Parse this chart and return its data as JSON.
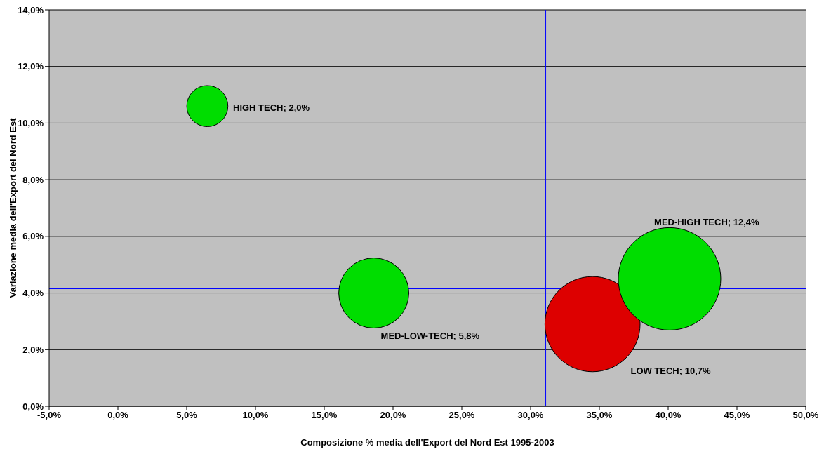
{
  "chart_data": {
    "type": "bubble",
    "xlabel": "Composizione % media dell'Export del Nord  Est 1995-2003",
    "ylabel": "Variazione media dell'Export del Nord Est",
    "x": [
      6.5,
      18.6,
      34.5,
      40.1
    ],
    "values": [
      10.6,
      4.0,
      2.9,
      4.5
    ],
    "sizes": [
      0.161,
      0.468,
      0.863,
      1
    ],
    "colors": [
      "#00dd00",
      "#00dd00",
      "#dd0000",
      "#00dd00"
    ],
    "annotations": [
      "HIGH TECH; 2,0%",
      "MED-LOW-TECH; 5,8%",
      "LOW TECH; 10,7%",
      "MED-HIGH TECH; 12,4%"
    ],
    "xlim": [
      -5,
      50
    ],
    "xticks": [
      {
        "value": -5,
        "label": "-5,0%"
      },
      {
        "value": 0,
        "label": "0,0%"
      },
      {
        "value": 5,
        "label": "5,0%"
      },
      {
        "value": 10,
        "label": "10,0%"
      },
      {
        "value": 15,
        "label": "15,0%"
      },
      {
        "value": 20,
        "label": "20,0%"
      },
      {
        "value": 25,
        "label": "25,0%"
      },
      {
        "value": 30,
        "label": "30,0%"
      },
      {
        "value": 35,
        "label": "35,0%"
      },
      {
        "value": 40,
        "label": "40,0%"
      },
      {
        "value": 45,
        "label": "45,0%"
      },
      {
        "value": 50,
        "label": "50,0%"
      }
    ],
    "ylim": [
      0,
      14
    ],
    "yticks": [
      {
        "value": 0,
        "label": "0,0%"
      },
      {
        "value": 2,
        "label": "2,0%"
      },
      {
        "value": 4,
        "label": "4,0%"
      },
      {
        "value": 6,
        "label": "6,0%"
      },
      {
        "value": 8,
        "label": "8,0%"
      },
      {
        "value": 10,
        "label": "10,0%"
      },
      {
        "value": 12,
        "label": "12,0%"
      },
      {
        "value": 14,
        "label": "14,0%"
      }
    ],
    "ref_lines": [
      {
        "axis": "x",
        "value": 31.1,
        "color": "#0000ff"
      },
      {
        "axis": "y",
        "value": 4.15,
        "color": "#0000ff"
      }
    ],
    "grid": "y",
    "legend": false
  }
}
